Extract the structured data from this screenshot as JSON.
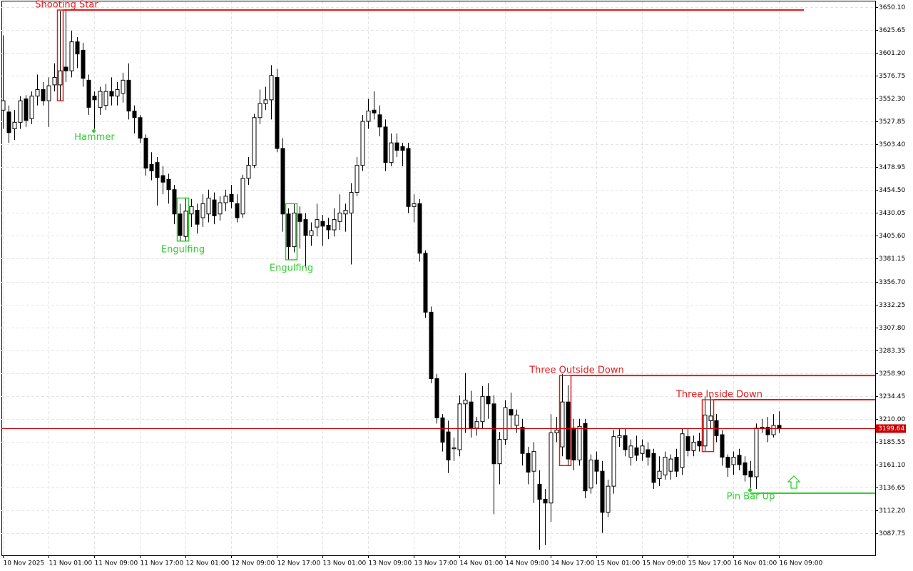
{
  "chart_data": {
    "type": "candlestick",
    "x": [
      "10 Nov 2025",
      null,
      null,
      null,
      null,
      null,
      null,
      null,
      "11 Nov 01:00",
      null,
      null,
      null,
      null,
      null,
      null,
      null,
      "11 Nov 09:00",
      null,
      null,
      null,
      null,
      null,
      null,
      null,
      "11 Nov 17:00",
      null,
      null,
      null,
      null,
      null,
      null,
      null,
      "12 Nov 01:00",
      null,
      null,
      null,
      null,
      null,
      null,
      null,
      "12 Nov 09:00",
      null,
      null,
      null,
      null,
      null,
      null,
      null,
      "12 Nov 17:00",
      null,
      null,
      null,
      null,
      null,
      null,
      null,
      "13 Nov 01:00",
      null,
      null,
      null,
      null,
      null,
      null,
      null,
      "13 Nov 09:00",
      null,
      null,
      null,
      null,
      null,
      null,
      null,
      "13 Nov 17:00",
      null,
      null,
      null,
      null,
      null,
      null,
      null,
      "14 Nov 01:00",
      null,
      null,
      null,
      null,
      null,
      null,
      null,
      "14 Nov 09:00",
      null,
      null,
      null,
      null,
      null,
      null,
      null,
      "14 Nov 17:00",
      null,
      null,
      null,
      null,
      null,
      null,
      null,
      "15 Nov 01:00",
      null,
      null,
      null,
      null,
      null,
      null,
      null,
      "15 Nov 09:00",
      null,
      null,
      null,
      null,
      null,
      null,
      null,
      "15 Nov 17:00",
      null,
      null,
      null,
      null,
      null,
      null,
      null,
      "16 Nov 01:00",
      null,
      null,
      null,
      null,
      null,
      null,
      null,
      "16 Nov 09:00"
    ],
    "open": [
      3540,
      3538,
      3520,
      3527,
      3552,
      3531,
      3555,
      3562,
      3550,
      3567,
      3567,
      3586,
      3582,
      3613,
      3604,
      3572,
      3555,
      3543,
      3545,
      3560,
      3555,
      3558,
      3572,
      3539,
      3532,
      3510,
      3482,
      3484,
      3470,
      3466,
      3455,
      3429,
      3405,
      3429,
      3433,
      3425,
      3429,
      3444,
      3429,
      3441,
      3450,
      3440,
      3429,
      3467,
      3481,
      3532,
      3547,
      3551,
      3575,
      3499,
      3429,
      3394,
      3429,
      3423,
      3406,
      3415,
      3421,
      3417,
      3412,
      3421,
      3429,
      3430,
      3452,
      3481,
      3528,
      3540,
      3535,
      3522,
      3484,
      3505,
      3501,
      3499,
      3437,
      3440,
      3387,
      3324,
      3253,
      3211,
      3196,
      3178,
      3177,
      3226,
      3228,
      3200,
      3207,
      3234,
      3226,
      3162,
      3188,
      3220,
      3203,
      3201,
      3173,
      3154,
      3140,
      3124,
      3120,
      3195,
      3180,
      3228,
      3200,
      3166,
      3205,
      3136,
      3166,
      3154,
      3110,
      3138,
      3190,
      3192,
      3169,
      3179,
      3173,
      3177,
      3173,
      3146,
      3150,
      3154,
      3169,
      3158,
      3191,
      3176,
      3186,
      3181,
      3208,
      3208,
      3193,
      3169,
      3161,
      3171,
      3163,
      3154,
      3148,
      3200,
      3201,
      3193,
      3203
    ],
    "high": [
      3620,
      3545,
      3540,
      3555,
      3556,
      3560,
      3578,
      3570,
      3575,
      3590,
      3646,
      3648,
      3625,
      3618,
      3612,
      3578,
      3560,
      3565,
      3568,
      3575,
      3570,
      3580,
      3590,
      3545,
      3535,
      3514,
      3495,
      3490,
      3480,
      3472,
      3460,
      3440,
      3446,
      3445,
      3440,
      3450,
      3455,
      3452,
      3448,
      3455,
      3460,
      3450,
      3471,
      3490,
      3536,
      3562,
      3565,
      3588,
      3584,
      3510,
      3435,
      3440,
      3437,
      3430,
      3420,
      3440,
      3428,
      3425,
      3435,
      3450,
      3440,
      3462,
      3490,
      3535,
      3552,
      3560,
      3545,
      3530,
      3515,
      3515,
      3505,
      3505,
      3450,
      3445,
      3390,
      3330,
      3258,
      3215,
      3208,
      3190,
      3235,
      3259,
      3240,
      3212,
      3245,
      3248,
      3235,
      3196,
      3230,
      3238,
      3220,
      3210,
      3180,
      3185,
      3155,
      3135,
      3215,
      3212,
      3258,
      3246,
      3210,
      3210,
      3210,
      3172,
      3175,
      3165,
      3145,
      3198,
      3200,
      3200,
      3188,
      3192,
      3188,
      3185,
      3178,
      3170,
      3175,
      3172,
      3178,
      3200,
      3200,
      3192,
      3195,
      3234,
      3234,
      3215,
      3198,
      3172,
      3175,
      3178,
      3170,
      3165,
      3205,
      3210,
      3212,
      3215,
      3218
    ],
    "low": [
      3520,
      3505,
      3508,
      3520,
      3522,
      3525,
      3545,
      3545,
      3522,
      3560,
      3550,
      3570,
      3575,
      3585,
      3565,
      3535,
      3520,
      3535,
      3540,
      3545,
      3545,
      3548,
      3530,
      3515,
      3505,
      3470,
      3465,
      3438,
      3450,
      3440,
      3418,
      3400,
      3400,
      3415,
      3408,
      3415,
      3420,
      3418,
      3422,
      3432,
      3435,
      3420,
      3425,
      3460,
      3478,
      3525,
      3540,
      3530,
      3495,
      3410,
      3380,
      3388,
      3392,
      3372,
      3395,
      3405,
      3395,
      3402,
      3405,
      3412,
      3410,
      3375,
      3448,
      3475,
      3520,
      3530,
      3512,
      3475,
      3480,
      3490,
      3480,
      3430,
      3420,
      3378,
      3318,
      3248,
      3205,
      3175,
      3152,
      3165,
      3170,
      3195,
      3190,
      3192,
      3200,
      3210,
      3108,
      3140,
      3182,
      3200,
      3195,
      3160,
      3140,
      3120,
      3070,
      3075,
      3100,
      3185,
      3170,
      3160,
      3155,
      3160,
      3125,
      3130,
      3140,
      3088,
      3105,
      3130,
      3180,
      3170,
      3160,
      3165,
      3165,
      3160,
      3135,
      3138,
      3145,
      3145,
      3148,
      3150,
      3170,
      3170,
      3175,
      3175,
      3200,
      3185,
      3160,
      3148,
      3150,
      3155,
      3143,
      3136,
      3135,
      3195,
      3185,
      3190,
      3195
    ],
    "close": [
      3550,
      3516,
      3527,
      3550,
      3529,
      3555,
      3562,
      3550,
      3566,
      3575,
      3582,
      3582,
      3613,
      3600,
      3574,
      3543,
      3551,
      3560,
      3560,
      3555,
      3562,
      3572,
      3539,
      3532,
      3510,
      3478,
      3475,
      3468,
      3463,
      3455,
      3429,
      3406,
      3432,
      3437,
      3418,
      3440,
      3446,
      3427,
      3441,
      3448,
      3442,
      3425,
      3467,
      3481,
      3532,
      3547,
      3551,
      3577,
      3499,
      3429,
      3394,
      3430,
      3421,
      3406,
      3411,
      3423,
      3416,
      3412,
      3423,
      3430,
      3433,
      3452,
      3481,
      3528,
      3539,
      3537,
      3522,
      3484,
      3505,
      3497,
      3497,
      3437,
      3440,
      3387,
      3324,
      3253,
      3211,
      3185,
      3166,
      3179,
      3226,
      3230,
      3200,
      3207,
      3234,
      3226,
      3162,
      3188,
      3222,
      3214,
      3214,
      3173,
      3153,
      3175,
      3124,
      3120,
      3195,
      3198,
      3228,
      3167,
      3166,
      3202,
      3133,
      3166,
      3154,
      3110,
      3138,
      3191,
      3192,
      3177,
      3181,
      3171,
      3181,
      3169,
      3142,
      3154,
      3169,
      3167,
      3154,
      3194,
      3176,
      3185,
      3181,
      3214,
      3213,
      3192,
      3169,
      3158,
      3169,
      3161,
      3150,
      3148,
      3200,
      3201,
      3193,
      3203,
      3200
    ],
    "ylim": [
      3064.1,
      3656.2
    ],
    "yticks": [
      {
        "value": 3650.1,
        "label": "3650.10"
      },
      3625.65,
      {
        "value": 3601.2,
        "label": "3601.20"
      },
      3576.75,
      {
        "value": 3552.3,
        "label": "3552.30"
      },
      3527.85,
      {
        "value": 3503.4,
        "label": "3503.40"
      },
      3478.95,
      {
        "value": 3454.5,
        "label": "3454.50"
      },
      3430.05,
      {
        "value": 3405.6,
        "label": "3405.60"
      },
      3381.15,
      {
        "value": 3356.7,
        "label": "3356.70"
      },
      3332.25,
      {
        "value": 3307.8,
        "label": "3307.80"
      },
      3283.35,
      {
        "value": 3258.9,
        "label": "3258.90"
      },
      3234.45,
      {
        "value": 3210,
        "label": "3210.00"
      },
      3185.55,
      {
        "value": 3161.1,
        "label": "3161.10"
      },
      3136.65,
      {
        "value": 3112.2,
        "label": "3112.20"
      },
      3087.75
    ],
    "grid": true,
    "last_price": 3199.64,
    "last_price_color": "#c80000",
    "patterns": [
      {
        "label": "Shooting Star",
        "color": "#e31a1c",
        "level": 3647.0
      },
      {
        "label": "Hammer",
        "color": "#32cd32"
      },
      {
        "label": "Engulfing",
        "color": "#32cd32"
      },
      {
        "label": "Engulfing",
        "color": "#32cd32"
      },
      {
        "label": "Three Outside Down",
        "color": "#e31a1c",
        "level": 3256.3
      },
      {
        "label": "Three Inside Down",
        "color": "#e31a1c",
        "level": 3230.4
      },
      {
        "label": "Pin Bar Up",
        "color": "#32cd32",
        "level": 3130.5
      }
    ]
  }
}
